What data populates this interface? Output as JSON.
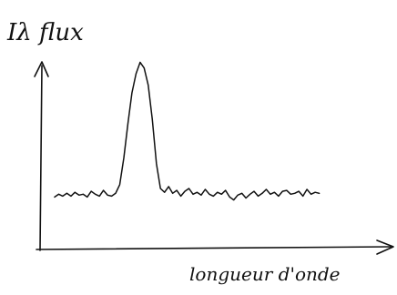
{
  "chart_data": {
    "type": "line",
    "title": "",
    "ylabel": "Iλ flux",
    "xlabel": "longueur d'onde",
    "ylim": [
      0,
      10
    ],
    "xlim": [
      0,
      10
    ],
    "grid": false,
    "legend": "none",
    "series": [
      {
        "color": "#111111",
        "x": [
          0.0,
          0.15,
          0.3,
          0.45,
          0.6,
          0.75,
          0.9,
          1.05,
          1.2,
          1.35,
          1.5,
          1.65,
          1.8,
          1.95,
          2.1,
          2.25,
          2.4,
          2.55,
          2.7,
          2.85,
          3.0,
          3.15,
          3.3,
          3.45,
          3.6,
          3.75,
          3.9,
          4.05,
          4.2,
          4.35,
          4.5,
          4.65,
          4.8,
          4.95,
          5.1,
          5.25,
          5.4,
          5.55,
          5.7,
          5.85,
          6.0,
          6.15,
          6.3,
          6.45,
          6.6,
          6.75,
          6.9,
          7.05,
          7.2,
          7.35,
          7.5,
          7.65,
          7.8,
          7.95,
          8.1,
          8.25,
          8.4,
          8.55,
          8.7,
          8.85,
          9.0,
          9.15,
          9.3,
          9.45,
          9.6,
          9.75
        ],
        "y": [
          2.55,
          2.7,
          2.6,
          2.75,
          2.6,
          2.8,
          2.65,
          2.7,
          2.55,
          2.85,
          2.7,
          2.6,
          2.9,
          2.65,
          2.6,
          2.75,
          3.2,
          4.6,
          6.4,
          8.0,
          9.0,
          9.6,
          9.3,
          8.4,
          6.6,
          4.3,
          3.0,
          2.8,
          3.1,
          2.75,
          2.9,
          2.6,
          2.85,
          3.0,
          2.7,
          2.8,
          2.65,
          2.95,
          2.7,
          2.6,
          2.8,
          2.7,
          2.9,
          2.55,
          2.4,
          2.65,
          2.75,
          2.5,
          2.7,
          2.85,
          2.6,
          2.75,
          2.95,
          2.7,
          2.8,
          2.6,
          2.85,
          2.9,
          2.7,
          2.75,
          2.85,
          2.6,
          2.95,
          2.7,
          2.8,
          2.75
        ]
      }
    ]
  }
}
